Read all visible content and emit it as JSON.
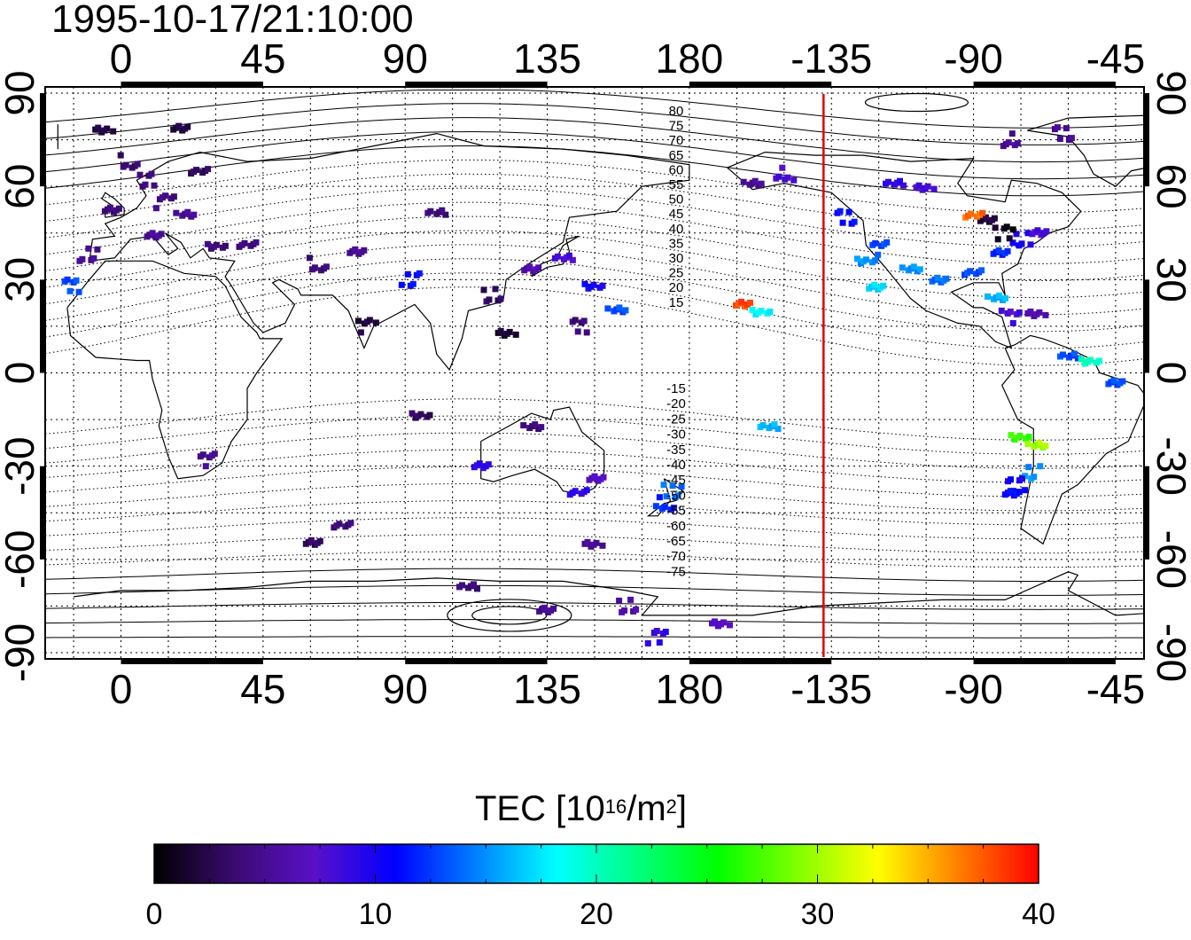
{
  "title": "1995-10-17/21:10:00",
  "map": {
    "x_ticks_bottom": [
      "0",
      "45",
      "90",
      "135",
      "180",
      "-135",
      "-90",
      "-45"
    ],
    "x_ticks_top": [
      "0",
      "45",
      "90",
      "135",
      "180",
      "-135",
      "-90",
      "-45"
    ],
    "y_ticks_left": [
      "90",
      "60",
      "30",
      "0",
      "-30",
      "-60",
      "-90"
    ],
    "y_ticks_right": [
      "90",
      "60",
      "30",
      "0",
      "-30",
      "-60",
      "-90"
    ],
    "lon_range": [
      -24,
      324
    ],
    "lat_range": [
      -92,
      92
    ],
    "terminator_lon": 222.5,
    "terminator_color": "#e00000",
    "contour_labels_north": [
      "80",
      "75",
      "70",
      "65",
      "60",
      "55",
      "50",
      "45",
      "40",
      "35",
      "30",
      "25",
      "20",
      "15"
    ],
    "contour_labels_south": [
      "-15",
      "-20",
      "-25",
      "-30",
      "-35",
      "-40",
      "-45",
      "-50",
      "-55",
      "-60",
      "-65",
      "-70",
      "-75"
    ]
  },
  "colorbar": {
    "label_main": "TEC  [10",
    "label_exp": "16",
    "label_unit": "/m",
    "label_unit_exp": "2",
    "label_close": "]",
    "ticks": [
      "0",
      "10",
      "20",
      "30",
      "40"
    ],
    "range": [
      0,
      40
    ],
    "stops": [
      "#000000",
      "#3a0b70",
      "#5a10c8",
      "#0000ff",
      "#0080ff",
      "#00ffff",
      "#00ff80",
      "#00ff00",
      "#80ff00",
      "#ffff00",
      "#ff8000",
      "#ff0000"
    ]
  },
  "tec_samples": [
    {
      "lon": 3,
      "lat": 68,
      "tec": 3.5
    },
    {
      "lon": 8,
      "lat": 62,
      "tec": 4
    },
    {
      "lon": 14,
      "lat": 55,
      "tec": 4.5
    },
    {
      "lon": 20,
      "lat": 50,
      "tec": 5
    },
    {
      "lon": -2,
      "lat": 52,
      "tec": 4
    },
    {
      "lon": 25,
      "lat": 65,
      "tec": 3
    },
    {
      "lon": 10,
      "lat": 45,
      "tec": 5
    },
    {
      "lon": 30,
      "lat": 42,
      "tec": 4
    },
    {
      "lon": -10,
      "lat": 38,
      "tec": 5
    },
    {
      "lon": -15,
      "lat": 28,
      "tec": 13
    },
    {
      "lon": 40,
      "lat": 40,
      "tec": 4
    },
    {
      "lon": 18,
      "lat": 78,
      "tec": 2
    },
    {
      "lon": -5,
      "lat": 78,
      "tec": 2
    },
    {
      "lon": 100,
      "lat": 52,
      "tec": 4
    },
    {
      "lon": 75,
      "lat": 40,
      "tec": 5
    },
    {
      "lon": 62,
      "lat": 35,
      "tec": 4
    },
    {
      "lon": 92,
      "lat": 30,
      "tec": 11
    },
    {
      "lon": 78,
      "lat": 15,
      "tec": 2
    },
    {
      "lon": 140,
      "lat": 36,
      "tec": 8
    },
    {
      "lon": 130,
      "lat": 33,
      "tec": 6
    },
    {
      "lon": 150,
      "lat": 28,
      "tec": 10
    },
    {
      "lon": 157,
      "lat": 21,
      "tec": 13
    },
    {
      "lon": 122,
      "lat": 14,
      "tec": 1.5
    },
    {
      "lon": 118,
      "lat": 25,
      "tec": 3
    },
    {
      "lon": 145,
      "lat": 15,
      "tec": 4
    },
    {
      "lon": 95,
      "lat": -15,
      "tec": 3
    },
    {
      "lon": 130,
      "lat": -18,
      "tec": 4
    },
    {
      "lon": 115,
      "lat": -30,
      "tec": 9
    },
    {
      "lon": 145,
      "lat": -38,
      "tec": 9
    },
    {
      "lon": 150,
      "lat": -33,
      "tec": 7
    },
    {
      "lon": 172,
      "lat": -42,
      "tec": 12
    },
    {
      "lon": 175,
      "lat": -38,
      "tec": 14
    },
    {
      "lon": 28,
      "lat": -28,
      "tec": 5
    },
    {
      "lon": 70,
      "lat": -50,
      "tec": 4
    },
    {
      "lon": 60,
      "lat": -55,
      "tec": 3
    },
    {
      "lon": 150,
      "lat": -55,
      "tec": 5
    },
    {
      "lon": 110,
      "lat": -68,
      "tec": 4
    },
    {
      "lon": 135,
      "lat": -75,
      "tec": 5
    },
    {
      "lon": 160,
      "lat": -75,
      "tec": 6
    },
    {
      "lon": 170,
      "lat": -85,
      "tec": 9
    },
    {
      "lon": 190,
      "lat": -82,
      "tec": 7
    },
    {
      "lon": 205,
      "lat": -18,
      "tec": 16
    },
    {
      "lon": 197,
      "lat": 22,
      "tec": 38
    },
    {
      "lon": 203,
      "lat": 20,
      "tec": 18
    },
    {
      "lon": 200,
      "lat": 62,
      "tec": 5
    },
    {
      "lon": 210,
      "lat": 64,
      "tec": 8
    },
    {
      "lon": 230,
      "lat": 50,
      "tec": 11
    },
    {
      "lon": 240,
      "lat": 40,
      "tec": 13
    },
    {
      "lon": 236,
      "lat": 35,
      "tec": 15
    },
    {
      "lon": 250,
      "lat": 33,
      "tec": 15
    },
    {
      "lon": 260,
      "lat": 30,
      "tec": 14
    },
    {
      "lon": 270,
      "lat": 33,
      "tec": 13
    },
    {
      "lon": 278,
      "lat": 40,
      "tec": 12
    },
    {
      "lon": 285,
      "lat": 43,
      "tec": 10
    },
    {
      "lon": 280,
      "lat": 45,
      "tec": 1
    },
    {
      "lon": 275,
      "lat": 48,
      "tec": 2
    },
    {
      "lon": 270,
      "lat": 50,
      "tec": 37
    },
    {
      "lon": 290,
      "lat": 45,
      "tec": 8
    },
    {
      "lon": 255,
      "lat": 60,
      "tec": 8
    },
    {
      "lon": 245,
      "lat": 62,
      "tec": 9
    },
    {
      "lon": 282,
      "lat": 75,
      "tec": 5
    },
    {
      "lon": 298,
      "lat": 77,
      "tec": 5
    },
    {
      "lon": 282,
      "lat": 18,
      "tec": 8
    },
    {
      "lon": 290,
      "lat": 18,
      "tec": 6
    },
    {
      "lon": 300,
      "lat": 5,
      "tec": 13
    },
    {
      "lon": 315,
      "lat": -3,
      "tec": 13
    },
    {
      "lon": 285,
      "lat": -20,
      "tec": 27
    },
    {
      "lon": 290,
      "lat": -22,
      "tec": 30
    },
    {
      "lon": 288,
      "lat": -32,
      "tec": 15
    },
    {
      "lon": 284,
      "lat": -36,
      "tec": 10
    },
    {
      "lon": 282,
      "lat": -40,
      "tec": 11
    },
    {
      "lon": 307,
      "lat": 3,
      "tec": 20
    },
    {
      "lon": 277,
      "lat": 24,
      "tec": 16
    },
    {
      "lon": 240,
      "lat": 28,
      "tec": 17
    }
  ]
}
